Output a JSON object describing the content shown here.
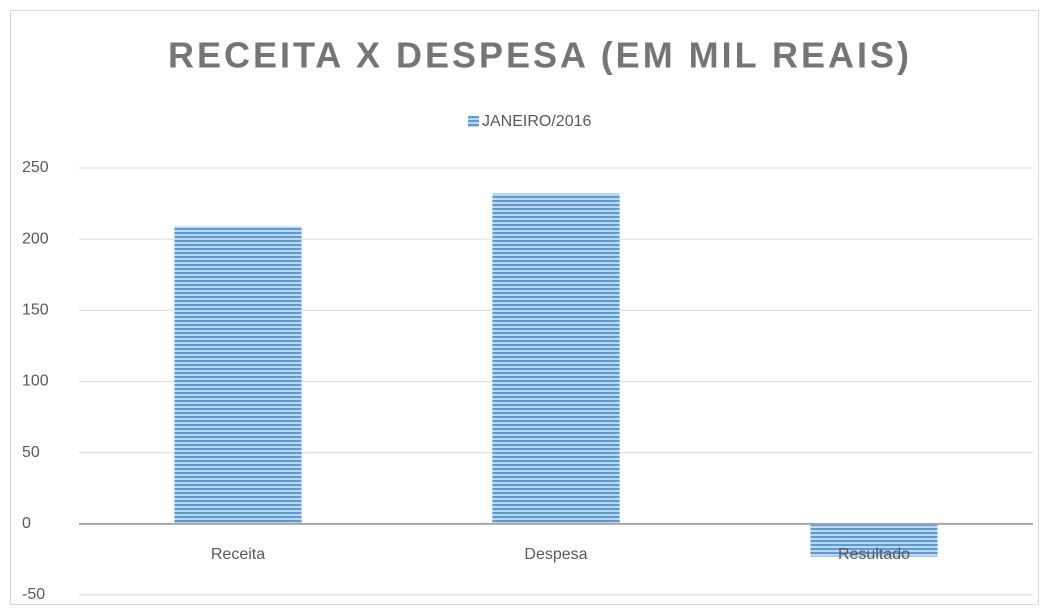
{
  "chart_data": {
    "type": "bar",
    "title": "RECEITA X DESPESA (EM MIL REAIS)",
    "categories": [
      "Receita",
      "Despesa",
      "Resultado"
    ],
    "series": [
      {
        "name": "JANEIRO/2016",
        "color": "#5b9bd5",
        "values": [
          209,
          232,
          -23
        ]
      }
    ],
    "ylim": [
      -50,
      250
    ],
    "yticks": [
      -50,
      0,
      50,
      100,
      150,
      200,
      250
    ],
    "grid": true,
    "legend": "top"
  }
}
